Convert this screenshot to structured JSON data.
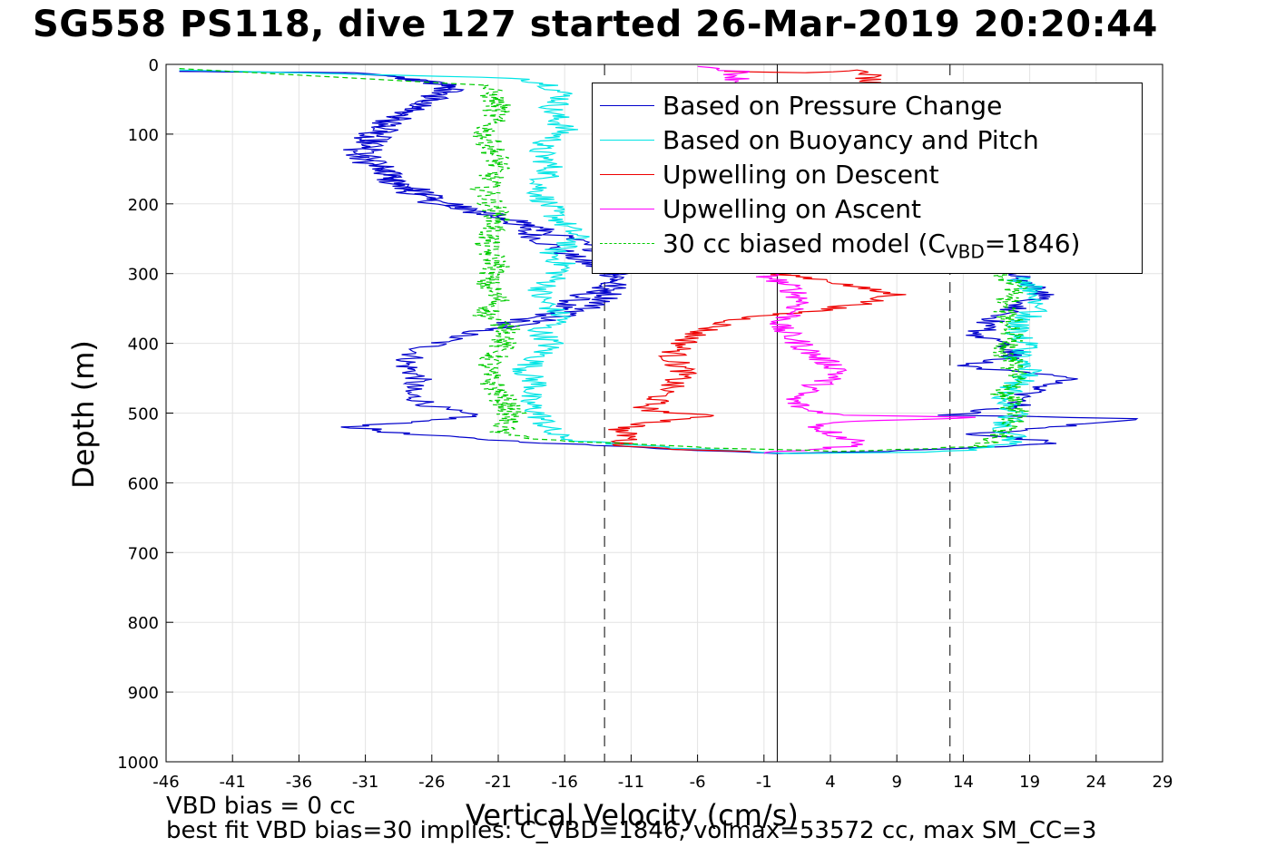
{
  "title": "SG558 PS118, dive 127 started 26-Mar-2019 20:20:44",
  "notes": {
    "line1": "VBD bias = 0 cc",
    "line2": "best fit VBD bias=30 implies: C_VBD=1846, volmax=53572 cc, max SM_CC=3"
  },
  "chart_data": {
    "type": "line",
    "title": "SG558 PS118, dive 127 started 26-Mar-2019 20:20:44",
    "xlabel": "Vertical Velocity (cm/s)",
    "ylabel": "Depth (m)",
    "xlim": [
      -46,
      29
    ],
    "ylim": [
      1000,
      0
    ],
    "y_reversed": true,
    "grid": true,
    "x_ticks": [
      "-46",
      "-41",
      "-36",
      "-31",
      "-26",
      "-21",
      "-16",
      "-11",
      "-6",
      "-1",
      "4",
      "9",
      "14",
      "19",
      "24",
      "29"
    ],
    "y_ticks": [
      "0",
      "100",
      "200",
      "300",
      "400",
      "500",
      "600",
      "700",
      "800",
      "900",
      "1000"
    ],
    "reference_lines": [
      {
        "x": 0,
        "style": "solid",
        "color": "#000000"
      },
      {
        "x": -13,
        "style": "dashed",
        "color": "#000000"
      },
      {
        "x": 13,
        "style": "dashed",
        "color": "#000000"
      }
    ],
    "legend_position": "top-right",
    "legend_sub": {
      "prefix": "30 cc biased model (C",
      "sub": "VBD",
      "suffix": "=1846)"
    },
    "series": [
      {
        "name": "Based on Pressure Change",
        "color": "#0000cc",
        "dash": "",
        "points": [
          [
            -45,
            10
          ],
          [
            -33,
            12
          ],
          [
            -29,
            18
          ],
          [
            -25,
            28
          ],
          [
            -24,
            35
          ],
          [
            -26,
            45
          ],
          [
            -27,
            60
          ],
          [
            -29,
            75
          ],
          [
            -30,
            90
          ],
          [
            -31,
            110
          ],
          [
            -32,
            130
          ],
          [
            -30,
            150
          ],
          [
            -29,
            170
          ],
          [
            -27,
            190
          ],
          [
            -25,
            205
          ],
          [
            -22,
            215
          ],
          [
            -20,
            225
          ],
          [
            -19,
            240
          ],
          [
            -17,
            260
          ],
          [
            -15,
            280
          ],
          [
            -12,
            305
          ],
          [
            -14,
            325
          ],
          [
            -16,
            345
          ],
          [
            -18,
            360
          ],
          [
            -21,
            375
          ],
          [
            -24,
            390
          ],
          [
            -27,
            410
          ],
          [
            -28,
            430
          ],
          [
            -27,
            450
          ],
          [
            -28,
            470
          ],
          [
            -26,
            490
          ],
          [
            -23,
            505
          ],
          [
            -32,
            520
          ],
          [
            -28,
            530
          ],
          [
            -20,
            540
          ],
          [
            -12,
            548
          ],
          [
            0,
            558
          ],
          [
            8,
            555
          ],
          [
            18,
            548
          ],
          [
            21,
            542
          ],
          [
            15,
            530
          ],
          [
            28,
            508
          ],
          [
            13,
            503
          ],
          [
            18,
            490
          ],
          [
            19,
            470
          ],
          [
            22,
            448
          ],
          [
            17,
            440
          ],
          [
            14,
            432
          ],
          [
            18,
            420
          ],
          [
            17,
            400
          ],
          [
            15,
            390
          ],
          [
            16,
            370
          ],
          [
            18,
            350
          ],
          [
            20,
            330
          ],
          [
            19,
            315
          ],
          [
            18,
            300
          ]
        ],
        "points_desc": [
          [
            -45,
            10
          ],
          [
            -32,
            12
          ],
          [
            -28,
            20
          ],
          [
            -25,
            30
          ],
          [
            -26,
            50
          ],
          [
            -28,
            70
          ],
          [
            -30,
            100
          ],
          [
            -31,
            130
          ],
          [
            -29,
            160
          ],
          [
            -26,
            190
          ],
          [
            -23,
            210
          ],
          [
            -20,
            220
          ],
          [
            -18,
            235
          ],
          [
            -15,
            255
          ],
          [
            -13,
            270
          ],
          [
            -11,
            290
          ],
          [
            -12,
            310
          ],
          [
            -13,
            340
          ],
          [
            -15,
            355
          ],
          [
            -18,
            370
          ],
          [
            -22,
            380
          ]
        ]
      },
      {
        "name": "Based on Buoyancy and Pitch",
        "color": "#00e5e5",
        "dash": "",
        "points": [
          [
            -45,
            8
          ],
          [
            -19,
            20
          ],
          [
            -17,
            30
          ],
          [
            -16,
            45
          ],
          [
            -17,
            65
          ],
          [
            -16,
            95
          ],
          [
            -18,
            120
          ],
          [
            -17,
            150
          ],
          [
            -18,
            180
          ],
          [
            -17,
            210
          ],
          [
            -16,
            230
          ],
          [
            -15,
            250
          ],
          [
            -17,
            270
          ],
          [
            -16,
            290
          ],
          [
            -17,
            310
          ],
          [
            -18,
            330
          ],
          [
            -17,
            350
          ],
          [
            -16,
            365
          ],
          [
            -18,
            380
          ],
          [
            -17,
            400
          ],
          [
            -18,
            420
          ],
          [
            -19,
            440
          ],
          [
            -18,
            460
          ],
          [
            -19,
            480
          ],
          [
            -18,
            500
          ],
          [
            -17,
            530
          ],
          [
            -15,
            540
          ],
          [
            -8,
            550
          ],
          [
            1,
            558
          ],
          [
            12,
            556
          ],
          [
            16,
            550
          ],
          [
            18,
            540
          ],
          [
            17,
            520
          ],
          [
            18,
            500
          ],
          [
            17,
            480
          ],
          [
            18,
            460
          ],
          [
            19,
            440
          ],
          [
            18,
            420
          ],
          [
            19,
            400
          ],
          [
            18,
            380
          ],
          [
            19,
            360
          ],
          [
            20,
            340
          ],
          [
            19,
            320
          ],
          [
            18,
            305
          ]
        ]
      },
      {
        "name": "Upwelling on Descent",
        "color": "#ee0000",
        "dash": "",
        "points": [
          [
            -4,
            10
          ],
          [
            2,
            12
          ],
          [
            6,
            8
          ],
          [
            7,
            11
          ],
          [
            0,
            300
          ],
          [
            4,
            310
          ],
          [
            6,
            320
          ],
          [
            9,
            330
          ],
          [
            6,
            345
          ],
          [
            2,
            355
          ],
          [
            -2,
            362
          ],
          [
            -4,
            372
          ],
          [
            -6,
            385
          ],
          [
            -7,
            400
          ],
          [
            -8,
            420
          ],
          [
            -7,
            440
          ],
          [
            -8,
            460
          ],
          [
            -9,
            480
          ],
          [
            -10,
            495
          ],
          [
            -5,
            505
          ],
          [
            -10,
            515
          ],
          [
            -12,
            525
          ],
          [
            -11,
            535
          ],
          [
            -12,
            545
          ],
          [
            -8,
            552
          ],
          [
            -2,
            555
          ]
        ]
      },
      {
        "name": "Upwelling on Ascent",
        "color": "#ff00ff",
        "dash": "",
        "points": [
          [
            -6,
            3
          ],
          [
            -4,
            6
          ],
          [
            -3,
            10
          ],
          [
            -1,
            300
          ],
          [
            1,
            320
          ],
          [
            2,
            340
          ],
          [
            1,
            360
          ],
          [
            0,
            375
          ],
          [
            1,
            390
          ],
          [
            2,
            405
          ],
          [
            3,
            420
          ],
          [
            5,
            440
          ],
          [
            3,
            460
          ],
          [
            1,
            480
          ],
          [
            2,
            495
          ],
          [
            5,
            503
          ],
          [
            16,
            506
          ],
          [
            5,
            512
          ],
          [
            3,
            520
          ],
          [
            5,
            535
          ],
          [
            7,
            545
          ],
          [
            -1,
            558
          ]
        ]
      },
      {
        "name": "30 cc biased model (C_VBD=1846)",
        "color": "#00cc00",
        "dash": "6,4",
        "points": [
          [
            -45,
            6
          ],
          [
            -22,
            30
          ],
          [
            -21,
            60
          ],
          [
            -22,
            100
          ],
          [
            -21,
            140
          ],
          [
            -22,
            180
          ],
          [
            -21,
            220
          ],
          [
            -22,
            260
          ],
          [
            -21,
            290
          ],
          [
            -22,
            310
          ],
          [
            -21,
            340
          ],
          [
            -22,
            360
          ],
          [
            -20,
            380
          ],
          [
            -21,
            410
          ],
          [
            -22,
            440
          ],
          [
            -21,
            470
          ],
          [
            -20,
            500
          ],
          [
            -21,
            530
          ],
          [
            -16,
            540
          ],
          [
            -5,
            550
          ],
          [
            5,
            555
          ],
          [
            15,
            548
          ],
          [
            17,
            530
          ],
          [
            18,
            500
          ],
          [
            17,
            470
          ],
          [
            18,
            440
          ],
          [
            17,
            410
          ],
          [
            18,
            380
          ],
          [
            17,
            350
          ],
          [
            18,
            320
          ],
          [
            17,
            300
          ]
        ]
      }
    ]
  }
}
